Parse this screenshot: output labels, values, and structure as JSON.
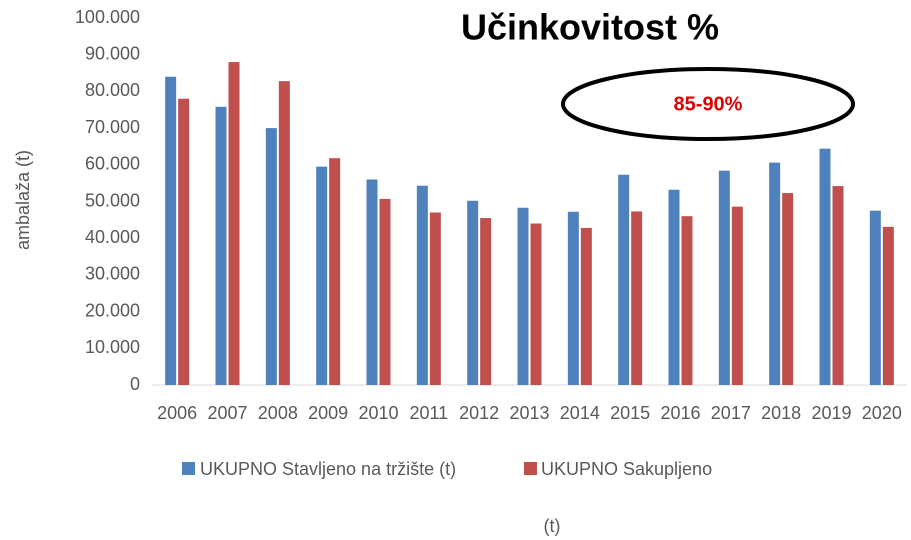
{
  "chart_data": {
    "type": "bar",
    "title": "Učinkovitost %",
    "annotation": "85-90%",
    "y_label": "ambalaža (t)",
    "x_label": "(t)",
    "categories": [
      "2006",
      "2007",
      "2008",
      "2009",
      "2010",
      "2011",
      "2012",
      "2013",
      "2014",
      "2015",
      "2016",
      "2017",
      "2018",
      "2019",
      "2020"
    ],
    "series": [
      {
        "name": "UKUPNO Stavljeno na tržište (t)",
        "color": "#4f81bd",
        "values": [
          84000,
          75800,
          70000,
          59500,
          56000,
          54300,
          50200,
          48300,
          47200,
          57300,
          53200,
          58400,
          60600,
          64400,
          47500
        ]
      },
      {
        "name": "UKUPNO Sakupljeno",
        "color": "#c0504d",
        "values": [
          78000,
          88000,
          82800,
          61800,
          50700,
          47000,
          45500,
          44000,
          42800,
          47300,
          46000,
          48600,
          52300,
          54200,
          43100
        ]
      }
    ],
    "ylim": [
      0,
      100000
    ],
    "yticks": [
      0,
      {
        "value": 10000,
        "label": "10.000"
      },
      {
        "value": 20000,
        "label": "20.000"
      },
      {
        "value": 30000,
        "label": "30.000"
      },
      {
        "value": 40000,
        "label": "40.000"
      },
      {
        "value": 50000,
        "label": "50.000"
      },
      {
        "value": 60000,
        "label": "60.000"
      },
      {
        "value": 70000,
        "label": "70.000"
      },
      {
        "value": 80000,
        "label": "80.000"
      },
      {
        "value": 90000,
        "label": "90.000"
      },
      {
        "value": 100000,
        "label": "100.000"
      }
    ],
    "grid": false
  }
}
